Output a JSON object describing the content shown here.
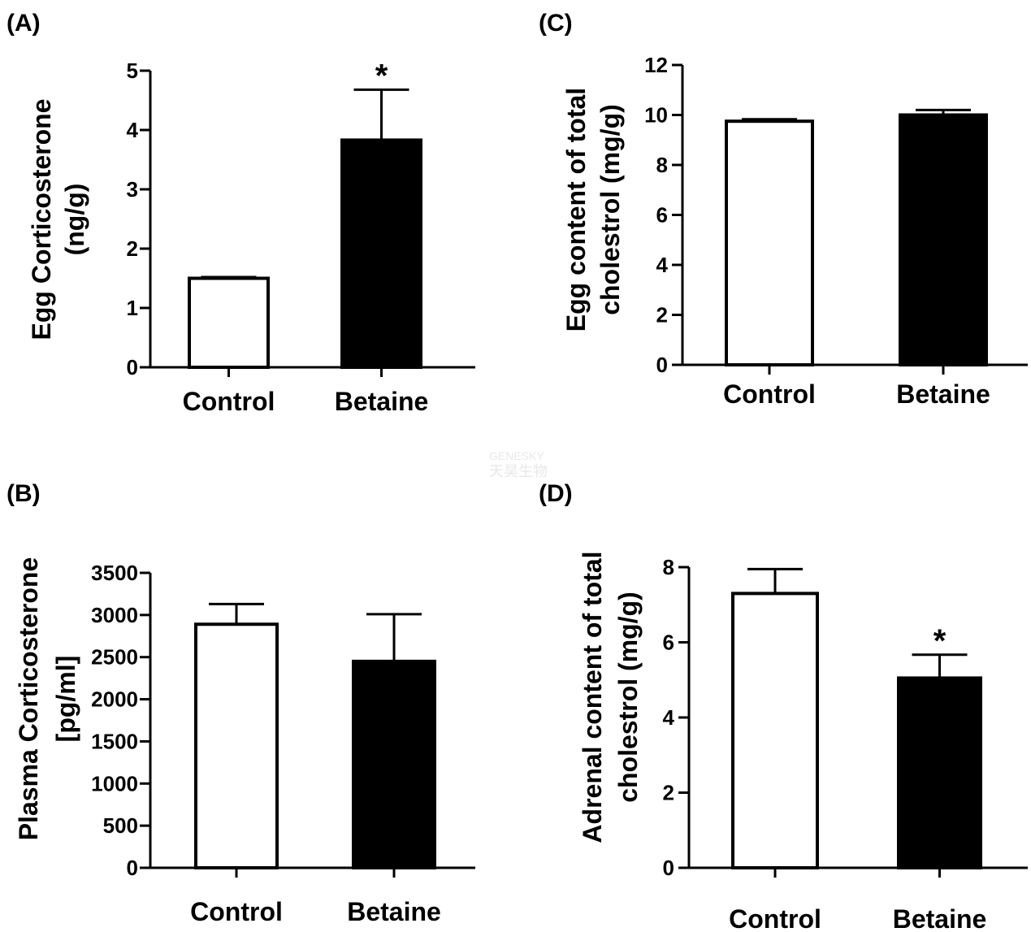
{
  "watermark": {
    "line1": "GENESKY",
    "line2": "天昊生物"
  },
  "chart_data": [
    {
      "id": "A",
      "type": "bar",
      "panel_label": "(A)",
      "ylabel_lines": [
        "Egg Corticosterone",
        "(ng/g)"
      ],
      "categories": [
        "Control",
        "Betaine"
      ],
      "values": [
        1.5,
        3.83
      ],
      "errors": [
        0.02,
        0.85
      ],
      "fills": [
        "#ffffff",
        "#000000"
      ],
      "significance": [
        "",
        "*"
      ],
      "ylim": [
        0,
        5
      ],
      "yticks": [
        0,
        1,
        2,
        3,
        4,
        5
      ],
      "ytick_labels": [
        "0",
        "1",
        "2",
        "3",
        "4",
        "5"
      ]
    },
    {
      "id": "B",
      "type": "bar",
      "panel_label": "(B)",
      "ylabel_lines": [
        "Plasma Corticosterone",
        "[pg/ml]"
      ],
      "categories": [
        "Control",
        "Betaine"
      ],
      "values": [
        2890,
        2450
      ],
      "errors": [
        240,
        560
      ],
      "fills": [
        "#ffffff",
        "#000000"
      ],
      "significance": [
        "",
        ""
      ],
      "ylim": [
        0,
        3500
      ],
      "yticks": [
        0,
        500,
        1000,
        1500,
        2000,
        2500,
        3000,
        3500
      ],
      "ytick_labels": [
        "0",
        "500",
        "1000",
        "1500",
        "2000",
        "2500",
        "3000",
        "3500"
      ]
    },
    {
      "id": "C",
      "type": "bar",
      "panel_label": "(C)",
      "ylabel_lines": [
        "Egg content of total",
        "cholestrol (mg/g)"
      ],
      "categories": [
        "Control",
        "Betaine"
      ],
      "values": [
        9.75,
        10.0
      ],
      "errors": [
        0.08,
        0.2
      ],
      "fills": [
        "#ffffff",
        "#000000"
      ],
      "significance": [
        "",
        ""
      ],
      "ylim": [
        0,
        12
      ],
      "yticks": [
        0,
        2,
        4,
        6,
        8,
        10,
        12
      ],
      "ytick_labels": [
        "0",
        "2",
        "4",
        "6",
        "8",
        "10",
        "12"
      ]
    },
    {
      "id": "D",
      "type": "bar",
      "panel_label": "(D)",
      "ylabel_lines": [
        "Adrenal content of total",
        "cholestrol (mg/g)"
      ],
      "categories": [
        "Control",
        "Betaine"
      ],
      "values": [
        7.3,
        5.05
      ],
      "errors": [
        0.65,
        0.62
      ],
      "fills": [
        "#ffffff",
        "#000000"
      ],
      "significance": [
        "",
        "*"
      ],
      "ylim": [
        0,
        8
      ],
      "yticks": [
        0,
        2,
        4,
        6,
        8
      ],
      "ytick_labels": [
        "0",
        "2",
        "4",
        "6",
        "8"
      ]
    }
  ]
}
